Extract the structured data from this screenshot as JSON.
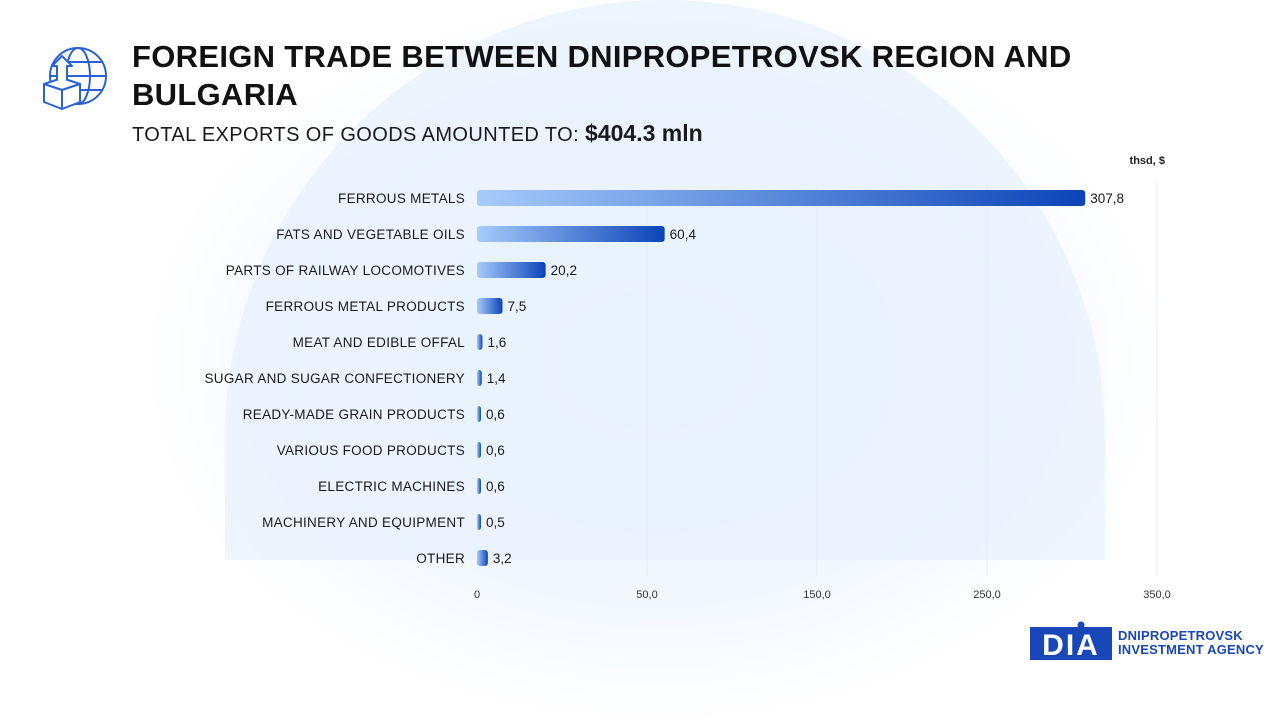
{
  "header": {
    "title": "FOREIGN TRADE BETWEEN DNIPROPETROVSK REGION AND BULGARIA",
    "subtitle_prefix": "TOTAL EXPORTS OF GOODS AMOUNTED TO:",
    "subtitle_amount": "$404.3 mln",
    "icon": "globe-export-box-icon"
  },
  "unit_label": "thsd, $",
  "colors": {
    "bar_start": "#a6cbfb",
    "bar_end": "#0c44b8",
    "grid": "#e6ecf4",
    "brand": "#1a47b8"
  },
  "chart_data": {
    "type": "bar",
    "orientation": "horizontal",
    "categories": [
      "FERROUS METALS",
      "FATS AND VEGETABLE OILS",
      "PARTS OF RAILWAY LOCOMOTIVES",
      "FERROUS METAL PRODUCTS",
      "MEAT AND EDIBLE OFFAL",
      "SUGAR AND SUGAR CONFECTIONERY",
      "READY-MADE GRAIN PRODUCTS",
      "VARIOUS FOOD PRODUCTS",
      "ELECTRIC MACHINES",
      "MACHINERY AND EQUIPMENT",
      "OTHER"
    ],
    "values": [
      307.8,
      60.4,
      20.2,
      7.5,
      1.6,
      1.4,
      0.6,
      0.6,
      0.6,
      0.5,
      3.2
    ],
    "value_labels": [
      "307,8",
      "60,4",
      "20,2",
      "7,5",
      "1,6",
      "1,4",
      "0,6",
      "0,6",
      "0,6",
      "0,5",
      "3,2"
    ],
    "x_ticks": [
      0,
      50,
      150,
      250,
      350
    ],
    "x_tick_labels": [
      "0",
      "50,0",
      "150,0",
      "250,0",
      "350,0"
    ],
    "grid": true,
    "legend": "none"
  },
  "logo": {
    "mark_text": "DIA",
    "line1": "DNIPROPETROVSK",
    "line2": "INVESTMENT AGENCY"
  }
}
